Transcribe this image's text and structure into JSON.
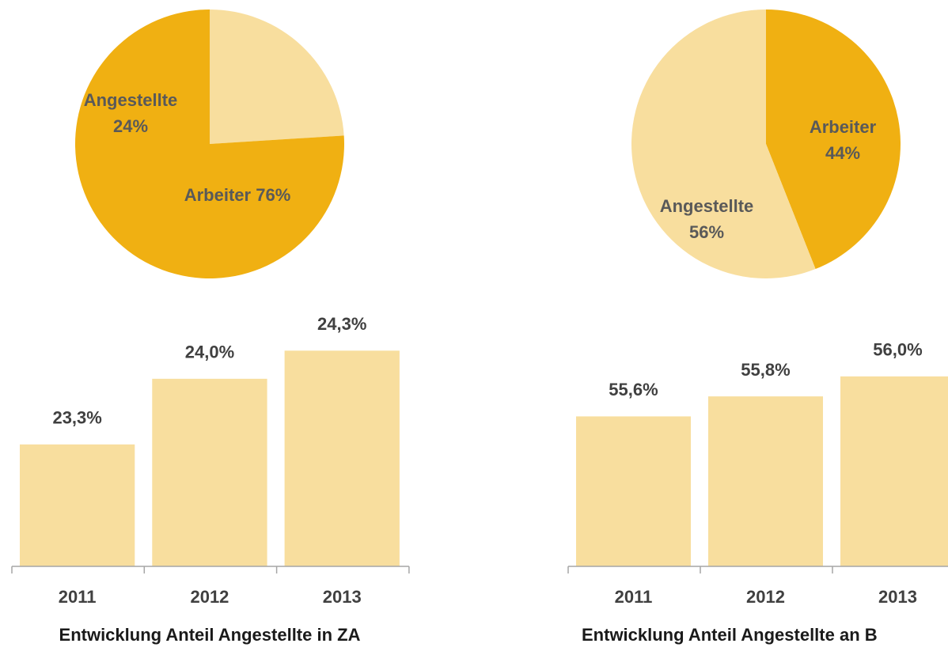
{
  "chart_data": [
    {
      "type": "pie",
      "categories": [
        "Angestellte",
        "Arbeiter"
      ],
      "values": [
        24,
        76
      ],
      "value_labels": [
        "24%",
        "76%"
      ],
      "colors": [
        "#F8DE9E",
        "#F0B012"
      ]
    },
    {
      "type": "pie",
      "categories": [
        "Arbeiter",
        "Angestellte"
      ],
      "values": [
        44,
        56
      ],
      "value_labels": [
        "44%",
        "56%"
      ],
      "colors": [
        "#F0B012",
        "#F8DE9E"
      ]
    },
    {
      "type": "bar",
      "title": "Entwicklung Anteil Angestellte in ZA",
      "categories": [
        "2011",
        "2012",
        "2013"
      ],
      "values": [
        23.3,
        24.0,
        24.3
      ],
      "value_labels": [
        "23,3%",
        "24,0%",
        "24,3%"
      ],
      "color": "#F8DE9E",
      "ylim": [
        22,
        24.8
      ]
    },
    {
      "type": "bar",
      "title": "Entwicklung Anteil Angestellte an B",
      "categories": [
        "2011",
        "2012",
        "2013"
      ],
      "values": [
        55.6,
        55.8,
        56.0
      ],
      "value_labels": [
        "55,6%",
        "55,8%",
        "56,0%"
      ],
      "color": "#F8DE9E",
      "ylim": [
        54.1,
        56.6
      ]
    }
  ]
}
